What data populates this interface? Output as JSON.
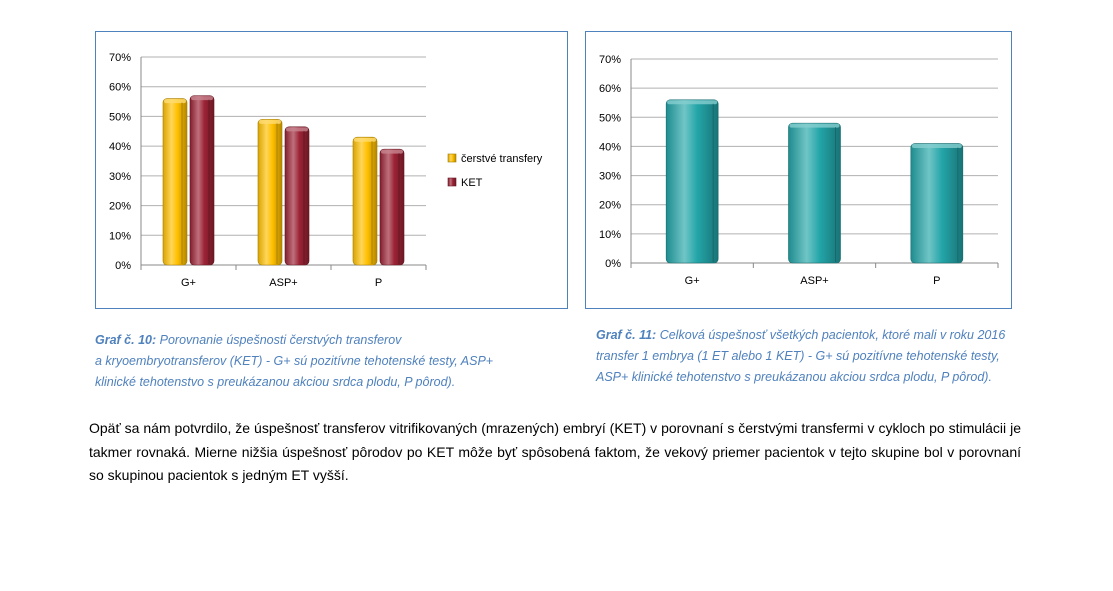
{
  "chart_data": [
    {
      "type": "bar",
      "categories": [
        "G+",
        "ASP+",
        "P"
      ],
      "series": [
        {
          "name": "čerstvé transfery",
          "values": [
            56,
            49,
            43
          ],
          "color": "#ffc000"
        },
        {
          "name": "KET",
          "values": [
            57,
            46.5,
            39
          ],
          "color": "#9b2335"
        }
      ],
      "yticks": [
        "0%",
        "10%",
        "20%",
        "30%",
        "40%",
        "50%",
        "60%",
        "70%"
      ],
      "ylim": [
        0,
        70
      ],
      "grid": true,
      "legend": "right"
    },
    {
      "type": "bar",
      "categories": [
        "G+",
        "ASP+",
        "P"
      ],
      "series": [
        {
          "values": [
            56,
            48,
            41
          ],
          "color": "#23a5a8"
        }
      ],
      "yticks": [
        "0%",
        "10%",
        "20%",
        "30%",
        "40%",
        "50%",
        "60%",
        "70%"
      ],
      "ylim": [
        0,
        70
      ],
      "grid": true,
      "legend": "none"
    }
  ],
  "captions": [
    {
      "label": "Graf č. 10:",
      "lines": [
        "Porovnanie úspešnosti čerstvých transferov",
        "a kryoembryotransferov (KET) - G+ sú pozitívne tehotenské testy, ASP+",
        "klinické tehotenstvo s preukázanou akciou srdca plodu, P pôrod)."
      ]
    },
    {
      "label": "Graf č. 11:",
      "lines": [
        "Celková úspešnosť všetkých pacientok, ktoré mali v roku 2016",
        "transfer 1 embrya (1 ET alebo 1 KET) - G+ sú pozitívne tehotenské testy,",
        "ASP+ klinické tehotenstvo s preukázanou akciou srdca plodu, P pôrod)."
      ]
    }
  ],
  "paragraph": "Opäť sa nám potvrdilo, že úspešnosť transferov vitrifikovaných (mrazených) embryí (KET) v porovnaní s čerstvými transfermi v cykloch po stimulácii je takmer rovnaká. Mierne nižšia úspešnosť pôrodov po KET môže byť spôsobená faktom, že vekový priemer pacientok v tejto skupine bol v porovnaní so skupinou pacientok s jedným ET vyšší."
}
